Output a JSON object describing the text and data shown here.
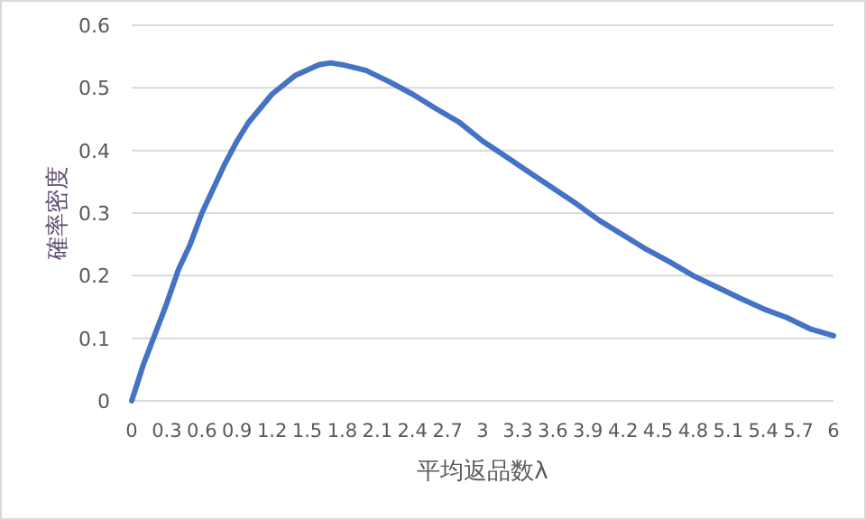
{
  "chart_data": {
    "type": "line",
    "xlabel": "平均返品数λ",
    "ylabel": "確率密度",
    "x": [
      0,
      0.1,
      0.2,
      0.3,
      0.4,
      0.5,
      0.6,
      0.7,
      0.8,
      0.9,
      1.0,
      1.2,
      1.4,
      1.6,
      1.7,
      1.8,
      2.0,
      2.2,
      2.4,
      2.6,
      2.8,
      3.0,
      3.2,
      3.4,
      3.6,
      3.8,
      4.0,
      4.2,
      4.4,
      4.6,
      4.8,
      5.0,
      5.2,
      5.4,
      5.6,
      5.8,
      6.0
    ],
    "series": [
      {
        "color": "#4472c4",
        "values": [
          0,
          0.058,
          0.107,
          0.156,
          0.21,
          0.25,
          0.3,
          0.34,
          0.38,
          0.415,
          0.445,
          0.49,
          0.52,
          0.537,
          0.54,
          0.537,
          0.528,
          0.51,
          0.49,
          0.467,
          0.445,
          0.415,
          0.39,
          0.365,
          0.34,
          0.315,
          0.288,
          0.265,
          0.242,
          0.222,
          0.2,
          0.182,
          0.164,
          0.147,
          0.133,
          0.115,
          0.104
        ]
      }
    ],
    "xlim": [
      0,
      6
    ],
    "xticks": [
      0,
      0.3,
      0.6,
      0.9,
      1.2,
      1.5,
      1.8,
      2.1,
      2.4,
      2.7,
      3,
      3.3,
      3.6,
      3.9,
      4.2,
      4.5,
      4.8,
      5.1,
      5.4,
      5.7,
      6
    ],
    "ylim": [
      0,
      0.6
    ],
    "yticks": [
      0,
      0.1,
      0.2,
      0.3,
      0.4,
      0.5,
      0.6
    ],
    "grid": "y"
  }
}
